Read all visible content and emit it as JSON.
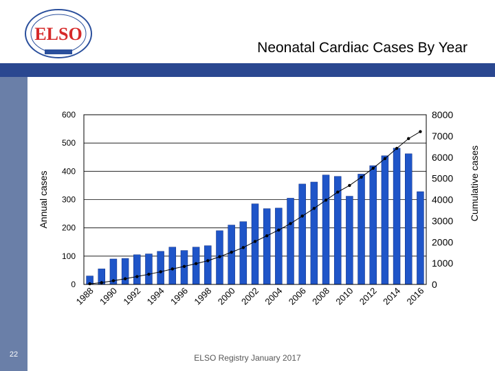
{
  "slide": {
    "title": "Neonatal Cardiac Cases By Year",
    "footer": "ELSO Registry January 2017",
    "slide_number": "22",
    "logo_text": "ELSO",
    "colors": {
      "banner": "#2a4790",
      "banner_side": "#6a7fa8",
      "bar": "#1f55c8",
      "line": "#000000",
      "logo_red": "#d62a2a",
      "logo_blue": "#2a4f9c"
    }
  },
  "chart_data": {
    "type": "bar",
    "x": [
      1988,
      1989,
      1990,
      1991,
      1992,
      1993,
      1994,
      1995,
      1996,
      1997,
      1998,
      1999,
      2000,
      2001,
      2002,
      2003,
      2004,
      2005,
      2006,
      2007,
      2008,
      2009,
      2010,
      2011,
      2012,
      2013,
      2014,
      2015,
      2016
    ],
    "x_tick_labels": [
      "1988",
      "1990",
      "1992",
      "1994",
      "1996",
      "1998",
      "2000",
      "2002",
      "2004",
      "2006",
      "2008",
      "2010",
      "2012",
      "2014",
      "2016"
    ],
    "series": [
      {
        "type": "bar",
        "axis": "left",
        "values": [
          30,
          55,
          90,
          92,
          105,
          108,
          117,
          132,
          120,
          132,
          137,
          190,
          210,
          222,
          285,
          268,
          270,
          305,
          355,
          362,
          387,
          382,
          312,
          390,
          420,
          455,
          482,
          462,
          328
        ]
      },
      {
        "type": "line",
        "axis": "right",
        "marker": "dot",
        "values": [
          30,
          85,
          175,
          267,
          372,
          480,
          597,
          729,
          849,
          981,
          1118,
          1308,
          1518,
          1740,
          2025,
          2293,
          2563,
          2868,
          3223,
          3585,
          3972,
          4354,
          4666,
          5056,
          5476,
          5931,
          6413,
          6875,
          7203
        ]
      }
    ],
    "ylabel": "Annual cases",
    "y2label": "Cumulative cases",
    "ylim": [
      0,
      600
    ],
    "y_ticks": [
      0,
      100,
      200,
      300,
      400,
      500,
      600
    ],
    "y2lim": [
      0,
      8000
    ],
    "y2_ticks": [
      0,
      1000,
      2000,
      3000,
      4000,
      5000,
      6000,
      7000,
      8000
    ],
    "grid": true
  }
}
